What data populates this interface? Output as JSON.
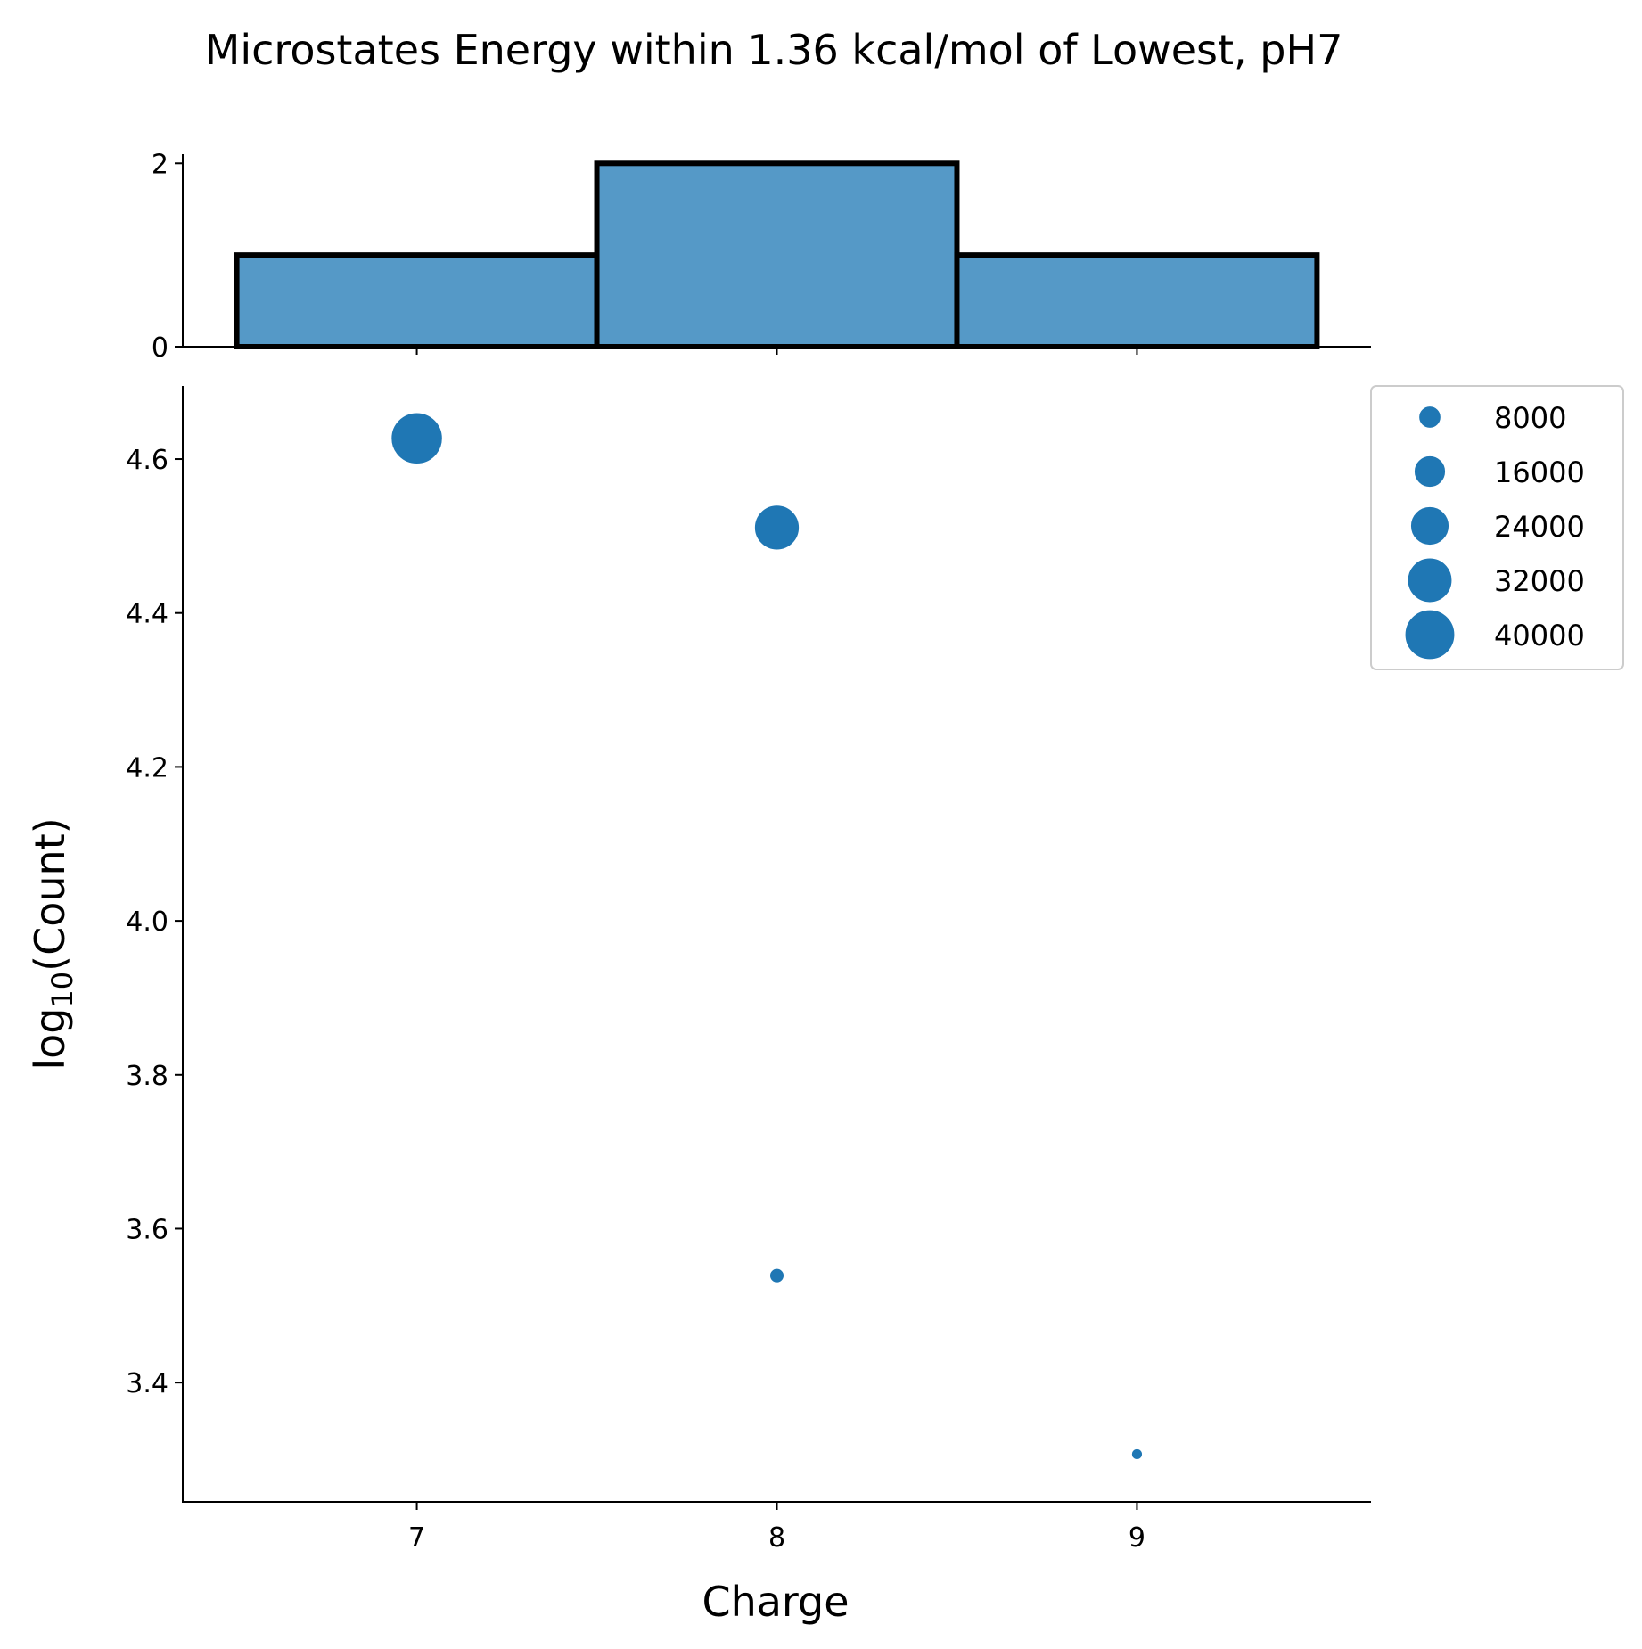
{
  "chart_data": {
    "title": "Microstates Energy within 1.36 kcal/mol of Lowest, pH7",
    "type": "scatter",
    "colors": {
      "point": "#1f77b4",
      "bar_fill": "#5599c7",
      "bar_edge": "#000000"
    },
    "x_label": "Charge",
    "y_label_main": "log",
    "y_label_sub": "10",
    "y_label_rest": "(Count)",
    "x_ticks": [
      "7",
      "8",
      "9"
    ],
    "xlim": [
      6.35,
      9.65
    ],
    "scatter": {
      "ylim": [
        3.245,
        4.695
      ],
      "y_ticks": [
        "3.4",
        "3.6",
        "3.8",
        "4.0",
        "4.2",
        "4.4",
        "4.6"
      ],
      "points": [
        {
          "x": 7,
          "y": 4.627,
          "count": 42400
        },
        {
          "x": 8,
          "y": 4.511,
          "count": 32400
        },
        {
          "x": 8,
          "y": 3.539,
          "count": 3460
        },
        {
          "x": 9,
          "y": 3.307,
          "count": 2030
        }
      ]
    },
    "histogram": {
      "ylim": [
        0,
        2.1
      ],
      "y_ticks": [
        "0",
        "2"
      ],
      "bins": [
        {
          "start": 6.5,
          "end": 7.5,
          "count": 1
        },
        {
          "start": 7.5,
          "end": 8.5,
          "count": 2
        },
        {
          "start": 8.5,
          "end": 9.5,
          "count": 1
        }
      ]
    },
    "legend": {
      "position": "right, outside top",
      "entries": [
        {
          "label": "8000",
          "value": 8000
        },
        {
          "label": "16000",
          "value": 16000
        },
        {
          "label": "24000",
          "value": 24000
        },
        {
          "label": "32000",
          "value": 32000
        },
        {
          "label": "40000",
          "value": 40000
        }
      ]
    }
  }
}
